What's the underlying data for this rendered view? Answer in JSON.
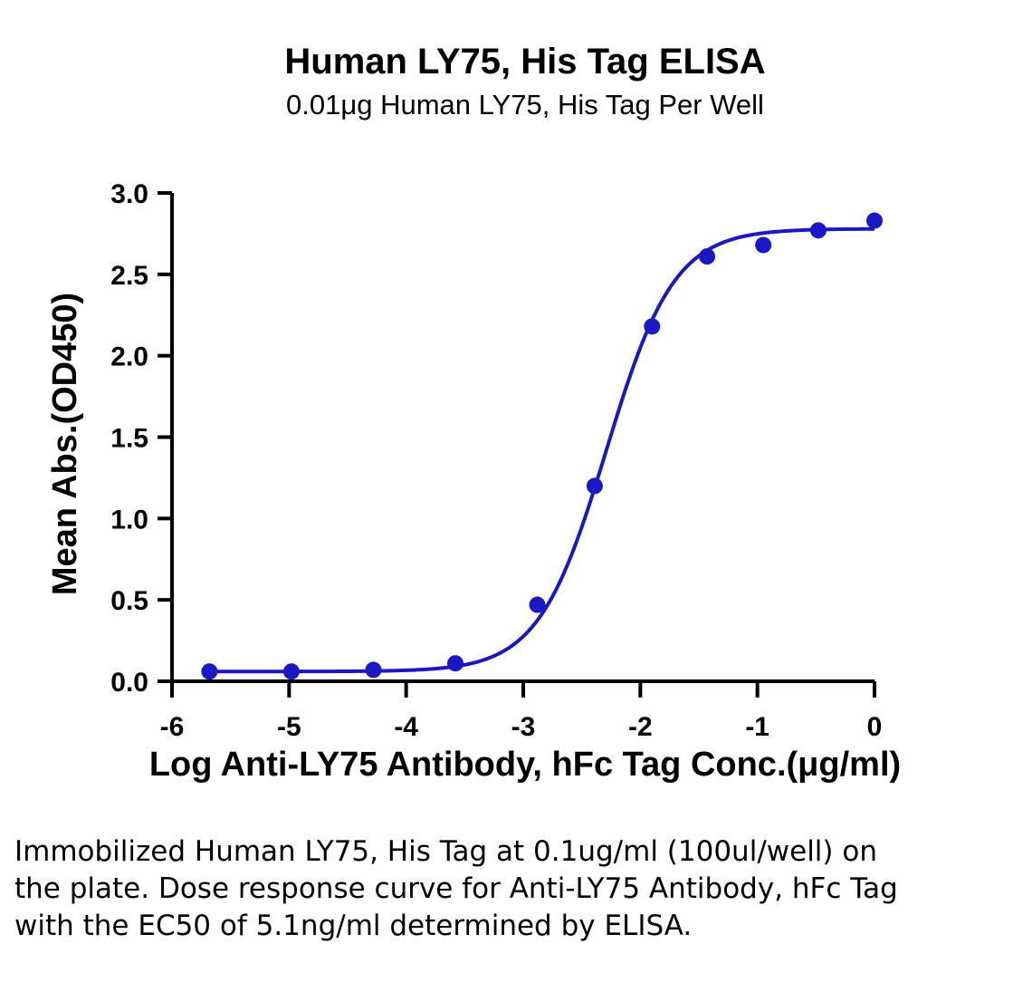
{
  "colors": {
    "series": "#1a17c4",
    "axis": "#000000"
  },
  "chart_data": {
    "type": "scatter",
    "title": "Human LY75, His Tag ELISA",
    "subtitle": "0.01μg Human LY75, His Tag Per Well",
    "xlabel": "Log Anti-LY75 Antibody, hFc Tag Conc.(μg/ml)",
    "ylabel": "Mean Abs.(OD450)",
    "xlim": [
      -6,
      0
    ],
    "ylim": [
      0,
      3.0
    ],
    "x_ticks": [
      -6,
      -5,
      -4,
      -3,
      -2,
      -1,
      0
    ],
    "x_tick_labels": [
      "-6",
      "-5",
      "-4",
      "-3",
      "-2",
      "-1",
      "0"
    ],
    "y_ticks": [
      0,
      0.5,
      1.0,
      1.5,
      2.0,
      2.5,
      3.0
    ],
    "y_tick_labels": [
      "0.0",
      "0.5",
      "1.0",
      "1.5",
      "2.0",
      "2.5",
      "3.0"
    ],
    "grid": false,
    "legend": "none",
    "series": [
      {
        "x": [
          -5.68,
          -4.98,
          -4.28,
          -3.58,
          -2.88,
          -2.39,
          -1.9,
          -1.43,
          -0.95,
          -0.48,
          0.0
        ],
        "y": [
          0.06,
          0.06,
          0.07,
          0.11,
          0.47,
          1.2,
          2.18,
          2.61,
          2.68,
          2.77,
          2.83
        ],
        "fit": {
          "model": "4PL",
          "bottom": 0.06,
          "top": 2.78,
          "log_ec50": -2.29,
          "hill_slope": 1.5
        }
      }
    ],
    "ec50": "5.1ng/ml"
  },
  "caption": "Immobilized Human LY75, His Tag at 0.1ug/ml (100ul/well) on the plate. Dose response curve for Anti-LY75 Antibody, hFc Tag with the EC50 of 5.1ng/ml determined by ELISA."
}
